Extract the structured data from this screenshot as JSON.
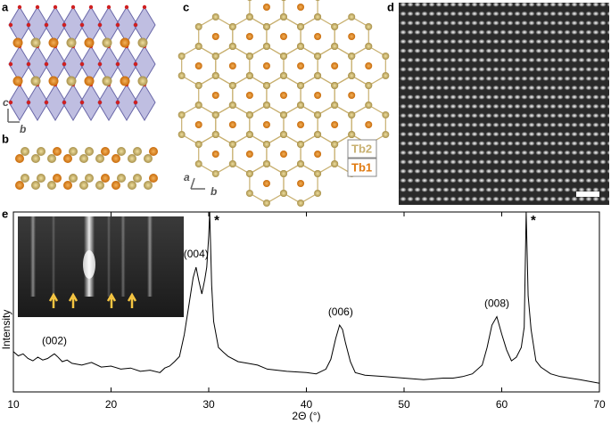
{
  "panels": {
    "a": "a",
    "b": "b",
    "c": "c",
    "d": "d",
    "e": "e",
    "axis_a_c": "c",
    "axis_a_b": "b",
    "axis_c_a": "a",
    "axis_c_b": "b",
    "tb2": "Tb2",
    "tb1": "Tb1"
  },
  "chart_data": {
    "type": "line",
    "xlabel": "2Θ (°)",
    "ylabel": "Intensity",
    "yscale": "log",
    "x": [
      10,
      10.5,
      11,
      11.5,
      12,
      12.5,
      13,
      13.5,
      14,
      14.2,
      14.5,
      15,
      15.5,
      16,
      17,
      18,
      19,
      20,
      21,
      22,
      23,
      24,
      25,
      25.5,
      26,
      26.5,
      27,
      27.5,
      28,
      28.4,
      28.7,
      29,
      29.3,
      29.6,
      29.8,
      30,
      30.1,
      30.3,
      30.5,
      31,
      31.5,
      32,
      33,
      34,
      35,
      36,
      38,
      40,
      41,
      42,
      42.5,
      43,
      43.4,
      43.7,
      44,
      44.5,
      45,
      46,
      48,
      50,
      52,
      54,
      55,
      56,
      57,
      58,
      58.5,
      59,
      59.5,
      60,
      60.5,
      61,
      61.5,
      62,
      62.3,
      62.5,
      62.7,
      63,
      63.5,
      64,
      65,
      66,
      68,
      70
    ],
    "series": [
      {
        "name": "XRD",
        "color": "#000000",
        "values": [
          4.7,
          4.0,
          4.3,
          3.6,
          3.3,
          3.8,
          3.4,
          3.6,
          4.1,
          4.3,
          3.9,
          3.2,
          3.4,
          3.0,
          2.8,
          3.1,
          2.6,
          2.7,
          2.4,
          2.5,
          2.2,
          2.3,
          2.1,
          2.5,
          2.7,
          3.2,
          3.9,
          9,
          30,
          80,
          120,
          70,
          43,
          75,
          120,
          400,
          1000,
          60,
          15,
          5.5,
          4.6,
          3.9,
          3.2,
          3.0,
          2.8,
          2.4,
          2.2,
          2.1,
          2.0,
          2.4,
          3.5,
          7.8,
          13,
          11,
          6.6,
          3.2,
          2.1,
          1.9,
          1.8,
          1.7,
          1.6,
          1.7,
          1.7,
          1.8,
          2.0,
          2.8,
          5.5,
          13,
          18,
          9.2,
          5.0,
          3.3,
          3.8,
          5.5,
          12,
          1000,
          40,
          11,
          3.3,
          2.6,
          2.0,
          1.8,
          1.6,
          1.4
        ]
      }
    ],
    "xlim": [
      10,
      70
    ],
    "xticks": [
      10,
      20,
      30,
      40,
      50,
      60,
      70
    ],
    "ylim": [
      1,
      1000
    ],
    "annotations": [
      {
        "text": "(002)",
        "x": 14.2
      },
      {
        "text": "(004)",
        "x": 28.7
      },
      {
        "text": "*",
        "x": 30.1
      },
      {
        "text": "(006)",
        "x": 43.5
      },
      {
        "text": "(008)",
        "x": 59.5
      },
      {
        "text": "*",
        "x": 62.5
      }
    ]
  }
}
